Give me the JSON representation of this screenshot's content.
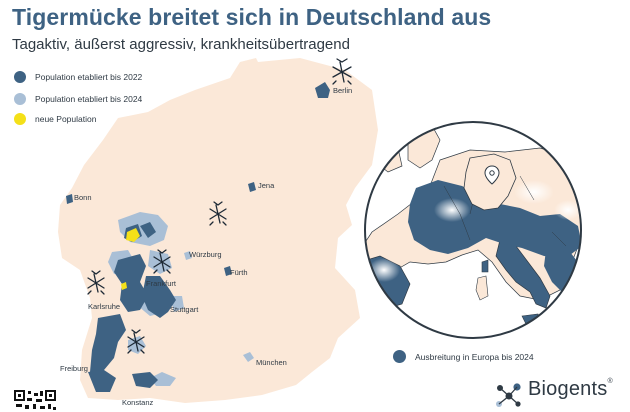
{
  "header": {
    "title": "Tigermücke breitet sich in Deutschland aus",
    "subtitle": "Tagaktiv, äußerst aggressiv, krankheitsübertragend"
  },
  "legend": {
    "items": [
      {
        "label": "Population etabliert bis 2022",
        "color": "#3e6283"
      },
      {
        "label": "Population etabliert bis 2024",
        "color": "#a9bfd6"
      },
      {
        "label": "neue Population",
        "color": "#f4e019"
      }
    ]
  },
  "cities": [
    {
      "name": "Berlin"
    },
    {
      "name": "Jena"
    },
    {
      "name": "Bonn"
    },
    {
      "name": "Würzburg"
    },
    {
      "name": "Frankfurt"
    },
    {
      "name": "Fürth"
    },
    {
      "name": "Karlsruhe"
    },
    {
      "name": "Stuttgart"
    },
    {
      "name": "München"
    },
    {
      "name": "Freiburg"
    },
    {
      "name": "Konstanz"
    }
  ],
  "europe_inset": {
    "legend_label": "Ausbreitung in Europa bis 2024",
    "legend_color": "#3e6283"
  },
  "brand": {
    "name": "Biogents",
    "mark": "®"
  },
  "colors": {
    "land": "#fbe8d8",
    "established_2022": "#3e6283",
    "established_2024": "#a9bfd6",
    "new_population": "#f4e019",
    "sea": "#ffffff"
  },
  "icons": [
    "mosquito-icon",
    "map-pin-icon",
    "qr-code-icon",
    "biogents-logo-icon"
  ]
}
